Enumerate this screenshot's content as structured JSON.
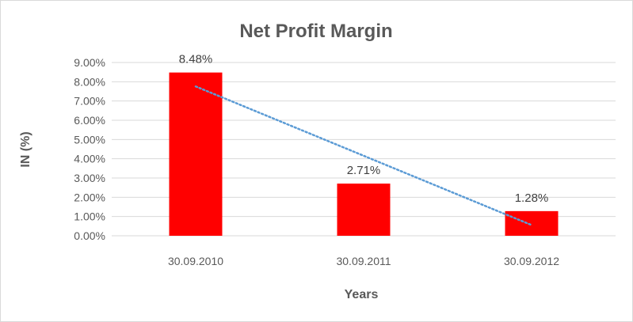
{
  "chart_data": {
    "type": "bar",
    "title": "Net Profit Margin",
    "xlabel": "Years",
    "ylabel": "IN (%)",
    "categories": [
      "30.09.2010",
      "30.09.2011",
      "30.09.2012"
    ],
    "series": [
      {
        "values": [
          8.48,
          2.71,
          1.28
        ],
        "labels": [
          "8.48%",
          "2.71%",
          "1.28%"
        ]
      }
    ],
    "ylim": [
      0,
      9
    ],
    "yticks": [
      0,
      1,
      2,
      3,
      4,
      5,
      6,
      7,
      8,
      9
    ],
    "ytick_labels": [
      "0.00%",
      "1.00%",
      "2.00%",
      "3.00%",
      "4.00%",
      "5.00%",
      "6.00%",
      "7.00%",
      "8.00%",
      "9.00%"
    ],
    "grid": true,
    "legend": "none",
    "trendline": {
      "type": "linear",
      "style": "dotted"
    },
    "colors": {
      "bar": "#ff0000",
      "trendline": "#5b9bd5",
      "grid": "#d9d9d9",
      "text": "#595959"
    }
  }
}
